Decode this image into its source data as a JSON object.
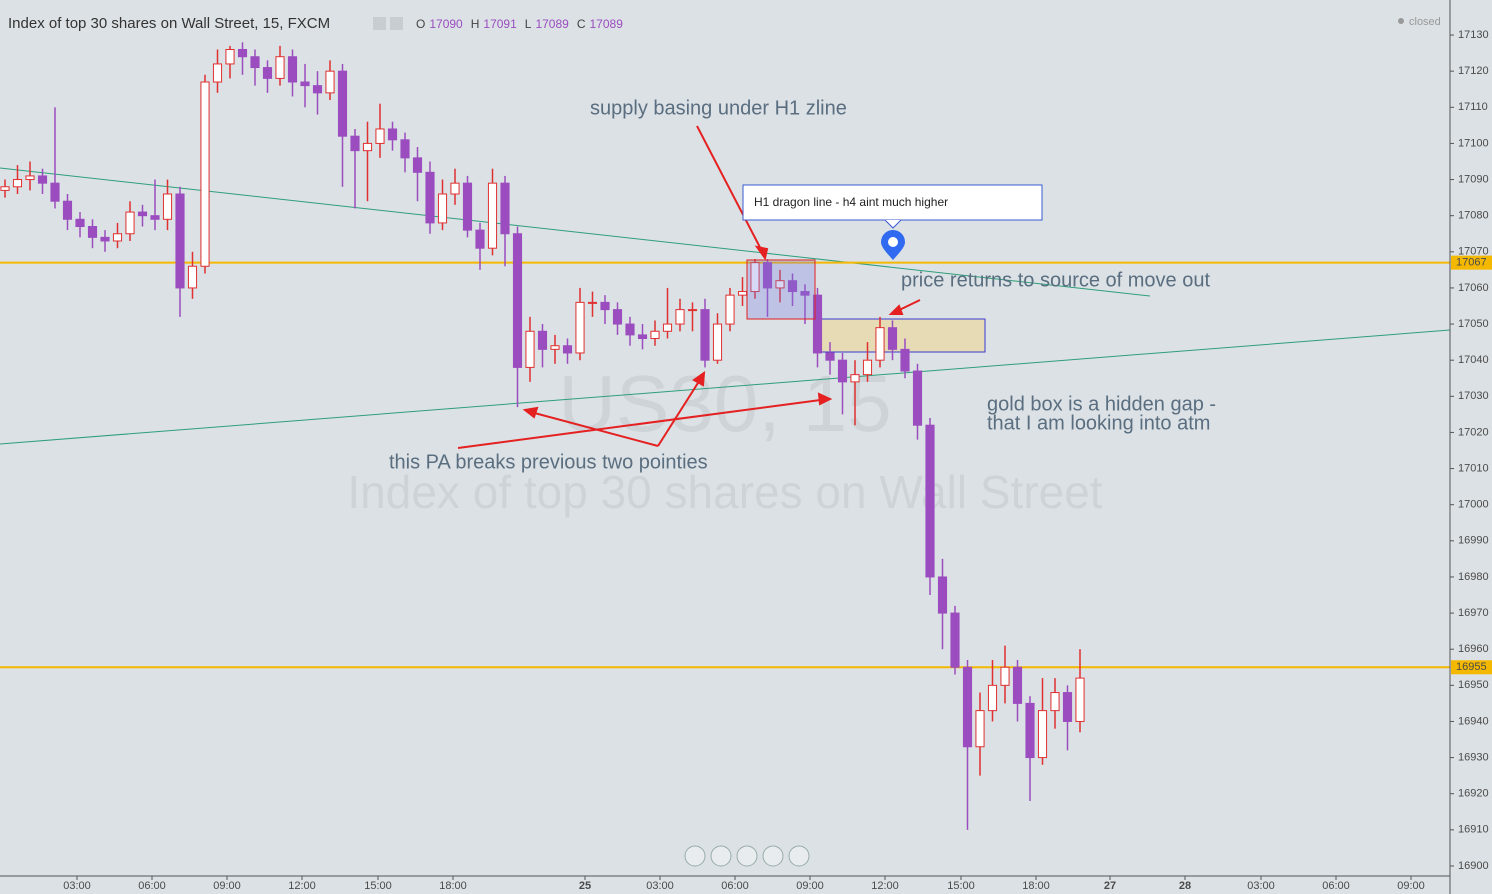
{
  "chart_data": {
    "type": "candlestick",
    "title": "Index of top 30 shares on Wall Street, 15, FXCM",
    "ohlc_header": [
      {
        "label": "O",
        "value": 17090
      },
      {
        "label": "H",
        "value": 17091
      },
      {
        "label": "L",
        "value": 17089
      },
      {
        "label": "C",
        "value": 17089
      }
    ],
    "status": "closed",
    "watermark": [
      "US30, 15",
      "Index of top 30 shares on Wall Street"
    ],
    "annotations": [
      "supply basing under H1 zline",
      "H1 dragon line - h4 aint much higher",
      "price returns to source of move out",
      "gold box is a hidden gap -",
      "that I am looking into atm",
      "this PA breaks previous two pointies"
    ],
    "up_color": "#e03030",
    "down_color": "#9b4dbf",
    "hline_color": "#f5b800",
    "hlines": [
      17067,
      16955
    ],
    "candles": [
      [
        17087,
        17090,
        17085,
        17088
      ],
      [
        17088,
        17094,
        17086,
        17090
      ],
      [
        17090,
        17095,
        17087,
        17091
      ],
      [
        17091,
        17093,
        17086,
        17089
      ],
      [
        17089,
        17110,
        17082,
        17084
      ],
      [
        17084,
        17086,
        17076,
        17079
      ],
      [
        17079,
        17081,
        17074,
        17077
      ],
      [
        17077,
        17079,
        17071,
        17074
      ],
      [
        17074,
        17076,
        17070,
        17073
      ],
      [
        17073,
        17078,
        17071,
        17075
      ],
      [
        17075,
        17084,
        17073,
        17081
      ],
      [
        17081,
        17083,
        17077,
        17080
      ],
      [
        17080,
        17090,
        17076,
        17079
      ],
      [
        17079,
        17090,
        17076,
        17086
      ],
      [
        17086,
        17088,
        17052,
        17060
      ],
      [
        17060,
        17070,
        17057,
        17066
      ],
      [
        17066,
        17119,
        17064,
        17117
      ],
      [
        17117,
        17126,
        17114,
        17122
      ],
      [
        17122,
        17127,
        17118,
        17126
      ],
      [
        17126,
        17128,
        17119,
        17124
      ],
      [
        17124,
        17126,
        17116,
        17121
      ],
      [
        17121,
        17123,
        17114,
        17118
      ],
      [
        17118,
        17127,
        17116,
        17124
      ],
      [
        17124,
        17126,
        17113,
        17117
      ],
      [
        17117,
        17122,
        17110,
        17116
      ],
      [
        17116,
        17120,
        17108,
        17114
      ],
      [
        17114,
        17123,
        17112,
        17120
      ],
      [
        17120,
        17122,
        17088,
        17102
      ],
      [
        17102,
        17104,
        17082,
        17098
      ],
      [
        17098,
        17106,
        17084,
        17100
      ],
      [
        17100,
        17111,
        17096,
        17104
      ],
      [
        17104,
        17106,
        17098,
        17101
      ],
      [
        17101,
        17103,
        17092,
        17096
      ],
      [
        17096,
        17099,
        17084,
        17092
      ],
      [
        17092,
        17095,
        17075,
        17078
      ],
      [
        17078,
        17090,
        17076,
        17086
      ],
      [
        17086,
        17093,
        17083,
        17089
      ],
      [
        17089,
        17091,
        17074,
        17076
      ],
      [
        17076,
        17078,
        17065,
        17071
      ],
      [
        17071,
        17093,
        17069,
        17089
      ],
      [
        17089,
        17091,
        17066,
        17075
      ],
      [
        17075,
        17077,
        17027,
        17038
      ],
      [
        17038,
        17052,
        17034,
        17048
      ],
      [
        17048,
        17050,
        17038,
        17043
      ],
      [
        17043,
        17047,
        17039,
        17044
      ],
      [
        17044,
        17046,
        17039,
        17042
      ],
      [
        17042,
        17060,
        17040,
        17056
      ],
      [
        17056,
        17059,
        17052,
        17056
      ],
      [
        17056,
        17058,
        17050,
        17054
      ],
      [
        17054,
        17056,
        17047,
        17050
      ],
      [
        17050,
        17052,
        17044,
        17047
      ],
      [
        17047,
        17050,
        17043,
        17046
      ],
      [
        17046,
        17051,
        17044,
        17048
      ],
      [
        17048,
        17060,
        17046,
        17050
      ],
      [
        17050,
        17057,
        17048,
        17054
      ],
      [
        17054,
        17056,
        17048,
        17054
      ],
      [
        17054,
        17057,
        17038,
        17040
      ],
      [
        17040,
        17053,
        17039,
        17050
      ],
      [
        17050,
        17060,
        17048,
        17058
      ],
      [
        17058,
        17063,
        17055,
        17059
      ],
      [
        17059,
        17068,
        17057,
        17067
      ],
      [
        17067,
        17068,
        17052,
        17060
      ],
      [
        17060,
        17065,
        17056,
        17062
      ],
      [
        17062,
        17064,
        17055,
        17059
      ],
      [
        17059,
        17061,
        17050,
        17058
      ],
      [
        17058,
        17060,
        17038,
        17042
      ],
      [
        17042,
        17045,
        17036,
        17040
      ],
      [
        17040,
        17042,
        17025,
        17034
      ],
      [
        17034,
        17040,
        17022,
        17036
      ],
      [
        17036,
        17045,
        17034,
        17040
      ],
      [
        17040,
        17052,
        17038,
        17049
      ],
      [
        17049,
        17051,
        17040,
        17043
      ],
      [
        17043,
        17046,
        17035,
        17037
      ],
      [
        17037,
        17039,
        17018,
        17022
      ],
      [
        17022,
        17024,
        16975,
        16980
      ],
      [
        16980,
        16985,
        16960,
        16970
      ],
      [
        16970,
        16972,
        16953,
        16955
      ],
      [
        16955,
        16957,
        16910,
        16933
      ],
      [
        16933,
        16948,
        16925,
        16943
      ],
      [
        16943,
        16957,
        16940,
        16950
      ],
      [
        16950,
        16961,
        16945,
        16955
      ],
      [
        16955,
        16957,
        16940,
        16945
      ],
      [
        16945,
        16947,
        16918,
        16930
      ],
      [
        16930,
        16952,
        16928,
        16943
      ],
      [
        16943,
        16952,
        16938,
        16948
      ],
      [
        16948,
        16950,
        16932,
        16940
      ],
      [
        16940,
        16960,
        16937,
        16952
      ]
    ],
    "xlim": [
      -0.4,
      115.6
    ],
    "xticks": [
      {
        "value": 5.76,
        "label": "03:00"
      },
      {
        "value": 11.76,
        "label": "06:00"
      },
      {
        "value": 17.76,
        "label": "09:00"
      },
      {
        "value": 23.76,
        "label": "12:00"
      },
      {
        "value": 29.84,
        "label": "15:00"
      },
      {
        "value": 35.84,
        "label": "18:00"
      },
      {
        "value": 46.4,
        "label": "25"
      },
      {
        "value": 52.4,
        "label": "03:00"
      },
      {
        "value": 58.4,
        "label": "06:00"
      },
      {
        "value": 64.4,
        "label": "09:00"
      },
      {
        "value": 70.4,
        "label": "12:00"
      },
      {
        "value": 76.48,
        "label": "15:00"
      },
      {
        "value": 82.48,
        "label": "18:00"
      },
      {
        "value": 88.4,
        "label": "27"
      },
      {
        "value": 94.4,
        "label": "28"
      },
      {
        "value": 100.48,
        "label": "03:00"
      },
      {
        "value": 106.48,
        "label": "06:00"
      },
      {
        "value": 112.48,
        "label": "09:00"
      }
    ],
    "ylim": [
      16897.5,
      17139.7
    ],
    "yticks": [
      16900,
      16910,
      16920,
      16930,
      16940,
      16950,
      16960,
      16970,
      16980,
      16990,
      17000,
      17010,
      17020,
      17030,
      17040,
      17050,
      17060,
      17070,
      17080,
      17090,
      17100,
      17110,
      17120,
      17130
    ]
  }
}
